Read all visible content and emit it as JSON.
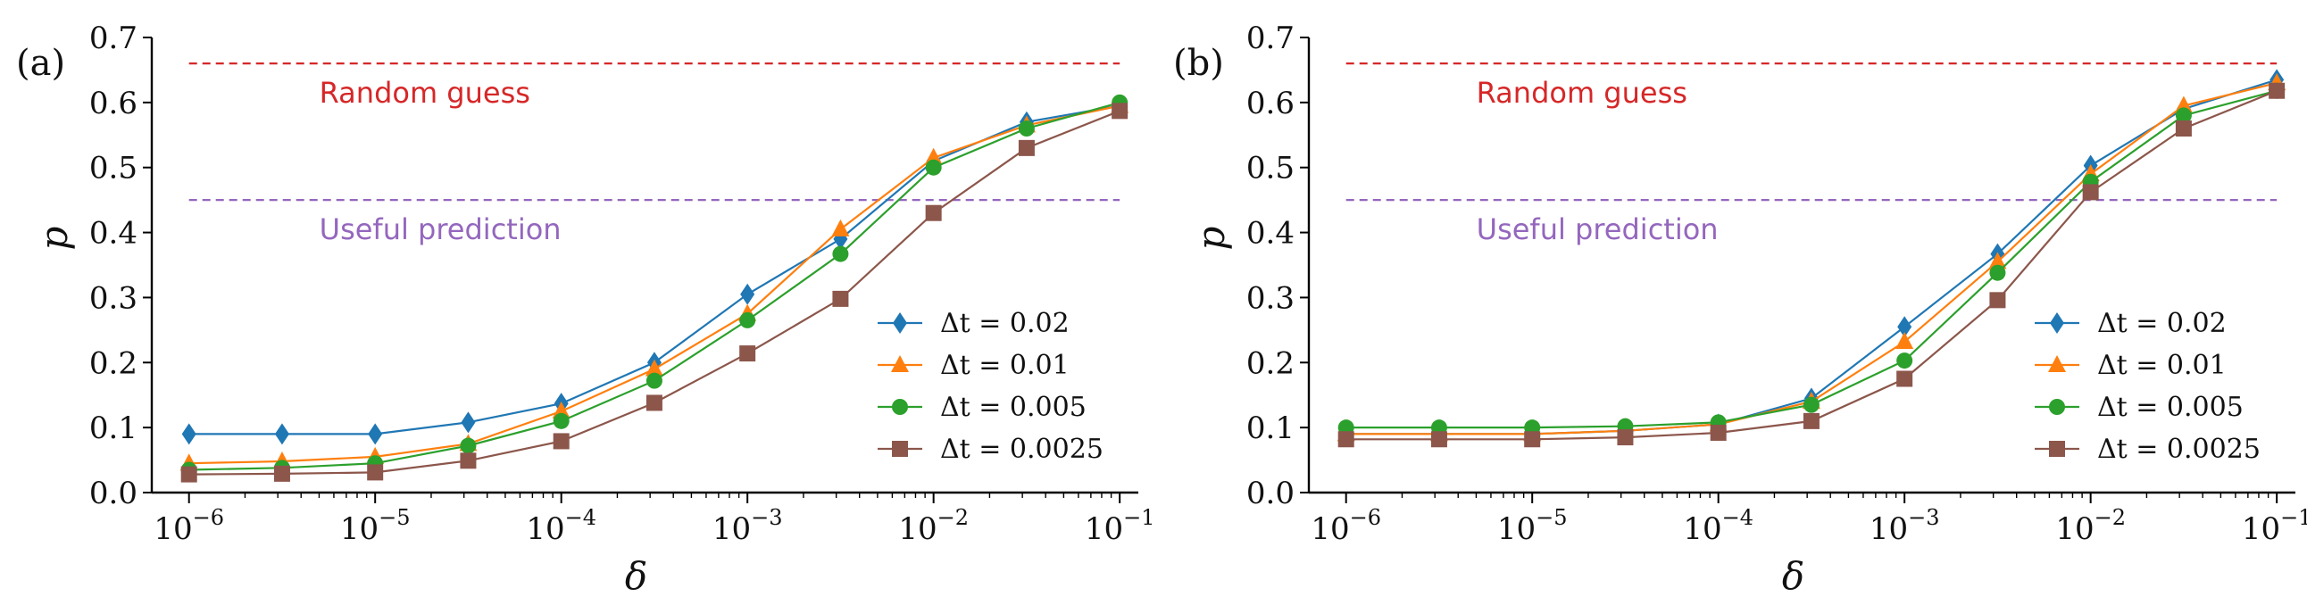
{
  "colors": {
    "random_guess": "#d62728",
    "useful_prediction": "#9467bd",
    "axis": "#000000"
  },
  "chart_data": [
    {
      "panel": "(a)",
      "type": "line",
      "xscale": "log",
      "xlim_exp": [
        -6.2,
        -0.9
      ],
      "ylim": [
        0,
        0.7
      ],
      "xlabel": "δ",
      "ylabel": "p",
      "xticks": [
        {
          "base": "10",
          "exp": "−6",
          "value": -6
        },
        {
          "base": "10",
          "exp": "−5",
          "value": -5
        },
        {
          "base": "10",
          "exp": "−4",
          "value": -4
        },
        {
          "base": "10",
          "exp": "−3",
          "value": -3
        },
        {
          "base": "10",
          "exp": "−2",
          "value": -2
        },
        {
          "base": "10",
          "exp": "−1",
          "value": -1
        }
      ],
      "yticks": [
        "0.0",
        "0.1",
        "0.2",
        "0.3",
        "0.4",
        "0.5",
        "0.6",
        "0.7"
      ],
      "reference_lines": [
        {
          "label": "Random guess",
          "value": 0.66,
          "color": "#d62728"
        },
        {
          "label": "Useful prediction",
          "value": 0.45,
          "color": "#9467bd"
        }
      ],
      "legend_position": "center-right",
      "x_exponents": [
        -6,
        -5.5,
        -5,
        -4.5,
        -4,
        -3.5,
        -3,
        -2.5,
        -2,
        -1.5,
        -1
      ],
      "series": [
        {
          "name": "Δt = 0.02",
          "marker": "diamond",
          "color": "#1f77b4",
          "values": [
            0.09,
            0.09,
            0.09,
            0.108,
            0.137,
            0.2,
            0.305,
            0.39,
            0.51,
            0.57,
            0.595
          ]
        },
        {
          "name": "Δt = 0.01",
          "marker": "triangle",
          "color": "#ff7f0e",
          "values": [
            0.045,
            0.048,
            0.055,
            0.075,
            0.125,
            0.19,
            0.275,
            0.405,
            0.515,
            0.565,
            0.595
          ]
        },
        {
          "name": "Δt = 0.005",
          "marker": "circle",
          "color": "#2ca02c",
          "values": [
            0.035,
            0.038,
            0.045,
            0.072,
            0.11,
            0.172,
            0.265,
            0.367,
            0.5,
            0.56,
            0.6
          ]
        },
        {
          "name": "Δt = 0.0025",
          "marker": "square",
          "color": "#8c564b",
          "values": [
            0.028,
            0.029,
            0.031,
            0.049,
            0.079,
            0.138,
            0.214,
            0.298,
            0.43,
            0.53,
            0.587
          ]
        }
      ]
    },
    {
      "panel": "(b)",
      "type": "line",
      "xscale": "log",
      "xlim_exp": [
        -6.2,
        -0.9
      ],
      "ylim": [
        0,
        0.7
      ],
      "xlabel": "δ",
      "ylabel": "p",
      "xticks": [
        {
          "base": "10",
          "exp": "−6",
          "value": -6
        },
        {
          "base": "10",
          "exp": "−5",
          "value": -5
        },
        {
          "base": "10",
          "exp": "−4",
          "value": -4
        },
        {
          "base": "10",
          "exp": "−3",
          "value": -3
        },
        {
          "base": "10",
          "exp": "−2",
          "value": -2
        },
        {
          "base": "10",
          "exp": "−1",
          "value": -1
        }
      ],
      "yticks": [
        "0.0",
        "0.1",
        "0.2",
        "0.3",
        "0.4",
        "0.5",
        "0.6",
        "0.7"
      ],
      "reference_lines": [
        {
          "label": "Random guess",
          "value": 0.66,
          "color": "#d62728"
        },
        {
          "label": "Useful prediction",
          "value": 0.45,
          "color": "#9467bd"
        }
      ],
      "legend_position": "center-right",
      "x_exponents": [
        -6,
        -5.5,
        -5,
        -4.5,
        -4,
        -3.5,
        -3,
        -2.5,
        -2,
        -1.5,
        -1
      ],
      "series": [
        {
          "name": "Δt = 0.02",
          "marker": "diamond",
          "color": "#1f77b4",
          "values": [
            0.09,
            0.09,
            0.09,
            0.095,
            0.105,
            0.145,
            0.255,
            0.367,
            0.503,
            0.59,
            0.635
          ]
        },
        {
          "name": "Δt = 0.01",
          "marker": "triangle",
          "color": "#ff7f0e",
          "values": [
            0.09,
            0.09,
            0.09,
            0.095,
            0.105,
            0.14,
            0.232,
            0.355,
            0.49,
            0.595,
            0.63
          ]
        },
        {
          "name": "Δt = 0.005",
          "marker": "circle",
          "color": "#2ca02c",
          "values": [
            0.1,
            0.1,
            0.1,
            0.102,
            0.108,
            0.135,
            0.203,
            0.338,
            0.478,
            0.58,
            0.618
          ]
        },
        {
          "name": "Δt = 0.0025",
          "marker": "square",
          "color": "#8c564b",
          "values": [
            0.082,
            0.082,
            0.082,
            0.085,
            0.092,
            0.11,
            0.175,
            0.296,
            0.462,
            0.56,
            0.618
          ]
        }
      ]
    }
  ]
}
